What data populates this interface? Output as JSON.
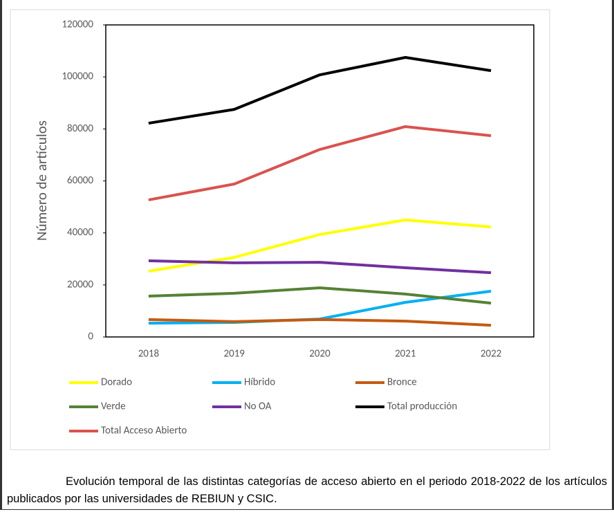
{
  "chart_data": {
    "type": "line",
    "y_label": "Número de artículos",
    "categories": [
      "2018",
      "2019",
      "2020",
      "2021",
      "2022"
    ],
    "series": [
      {
        "name": "Dorado",
        "color": "#ffff00",
        "values": [
          25300,
          30600,
          39400,
          45000,
          42300
        ]
      },
      {
        "name": "Híbrido",
        "color": "#00b0f0",
        "values": [
          5300,
          5600,
          6900,
          13300,
          17600
        ]
      },
      {
        "name": "Bronce",
        "color": "#c55a11",
        "values": [
          6700,
          5900,
          6700,
          6100,
          4500
        ]
      },
      {
        "name": "Verde",
        "color": "#548235",
        "values": [
          15700,
          16800,
          18900,
          16500,
          13000
        ]
      },
      {
        "name": "No OA",
        "color": "#7030a0",
        "values": [
          29300,
          28500,
          28700,
          26600,
          24700
        ]
      },
      {
        "name": "Total producción",
        "color": "#000000",
        "values": [
          82200,
          87500,
          100800,
          107500,
          102400
        ]
      },
      {
        "name": "Total Acceso Abierto",
        "color": "#d9534f",
        "values": [
          52700,
          58800,
          72100,
          80900,
          77400
        ]
      }
    ],
    "ylim": [
      0,
      120000
    ],
    "yticks": [
      0,
      20000,
      40000,
      60000,
      80000,
      100000,
      120000
    ],
    "legend": "bottom"
  },
  "caption": "Evolución temporal de las distintas categorías de acceso abierto en el periodo 2018-2022 de los artículos publicados por las universidades de REBIUN y CSIC."
}
